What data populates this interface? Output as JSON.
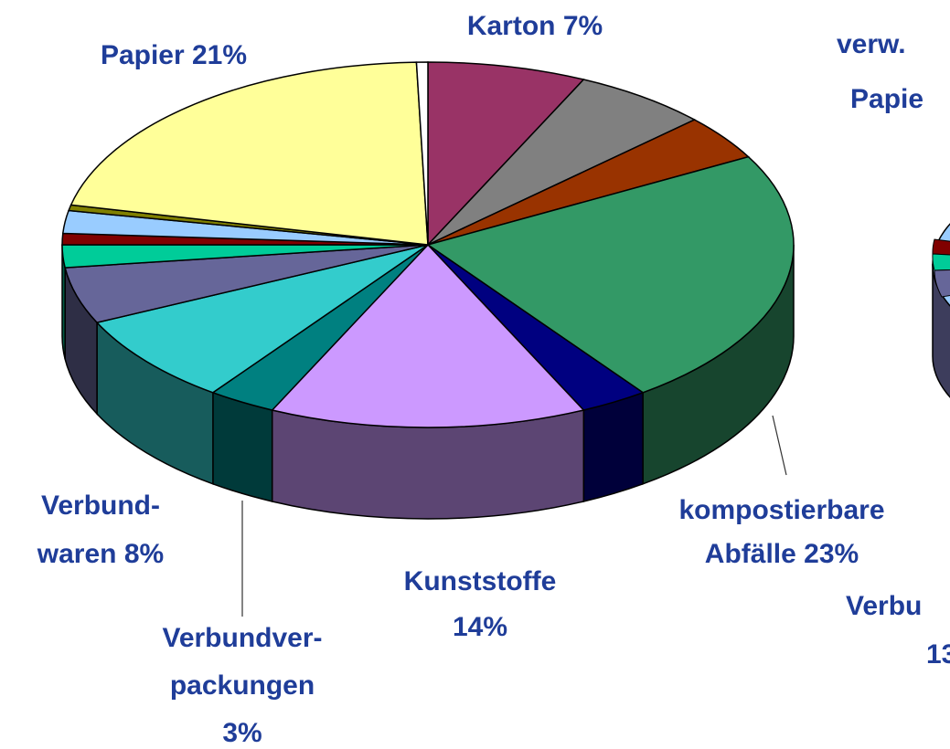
{
  "chart_data": {
    "type": "pie",
    "three_d": true,
    "categories": [
      [
        "Karton"
      ],
      null,
      null,
      [
        "kompostierbare",
        "Abfälle"
      ],
      null,
      [
        "Kunststoffe"
      ],
      [
        "Verbundver-",
        "packungen"
      ],
      [
        "Verbund-",
        "waren"
      ],
      null,
      null,
      null,
      null,
      null,
      [
        "Papier"
      ],
      null
    ],
    "values": [
      7,
      6,
      4,
      23,
      3,
      14,
      3,
      8,
      5,
      2,
      1,
      2,
      0.5,
      21,
      0.5
    ],
    "value_labels": [
      "7%",
      null,
      null,
      "23%",
      null,
      "14%",
      "3%",
      "8%",
      null,
      null,
      null,
      null,
      null,
      "21%",
      null
    ],
    "colors": [
      "#993366",
      "#808080",
      "#993300",
      "#339966",
      "#000080",
      "#cc99ff",
      "#008080",
      "#33cccc",
      "#666699",
      "#00cc99",
      "#800000",
      "#99ccff",
      "#808000",
      "#ffff99",
      "#ffffff"
    ],
    "annotations": [
      "verw.",
      "Papie",
      "Verbu",
      "13"
    ]
  }
}
